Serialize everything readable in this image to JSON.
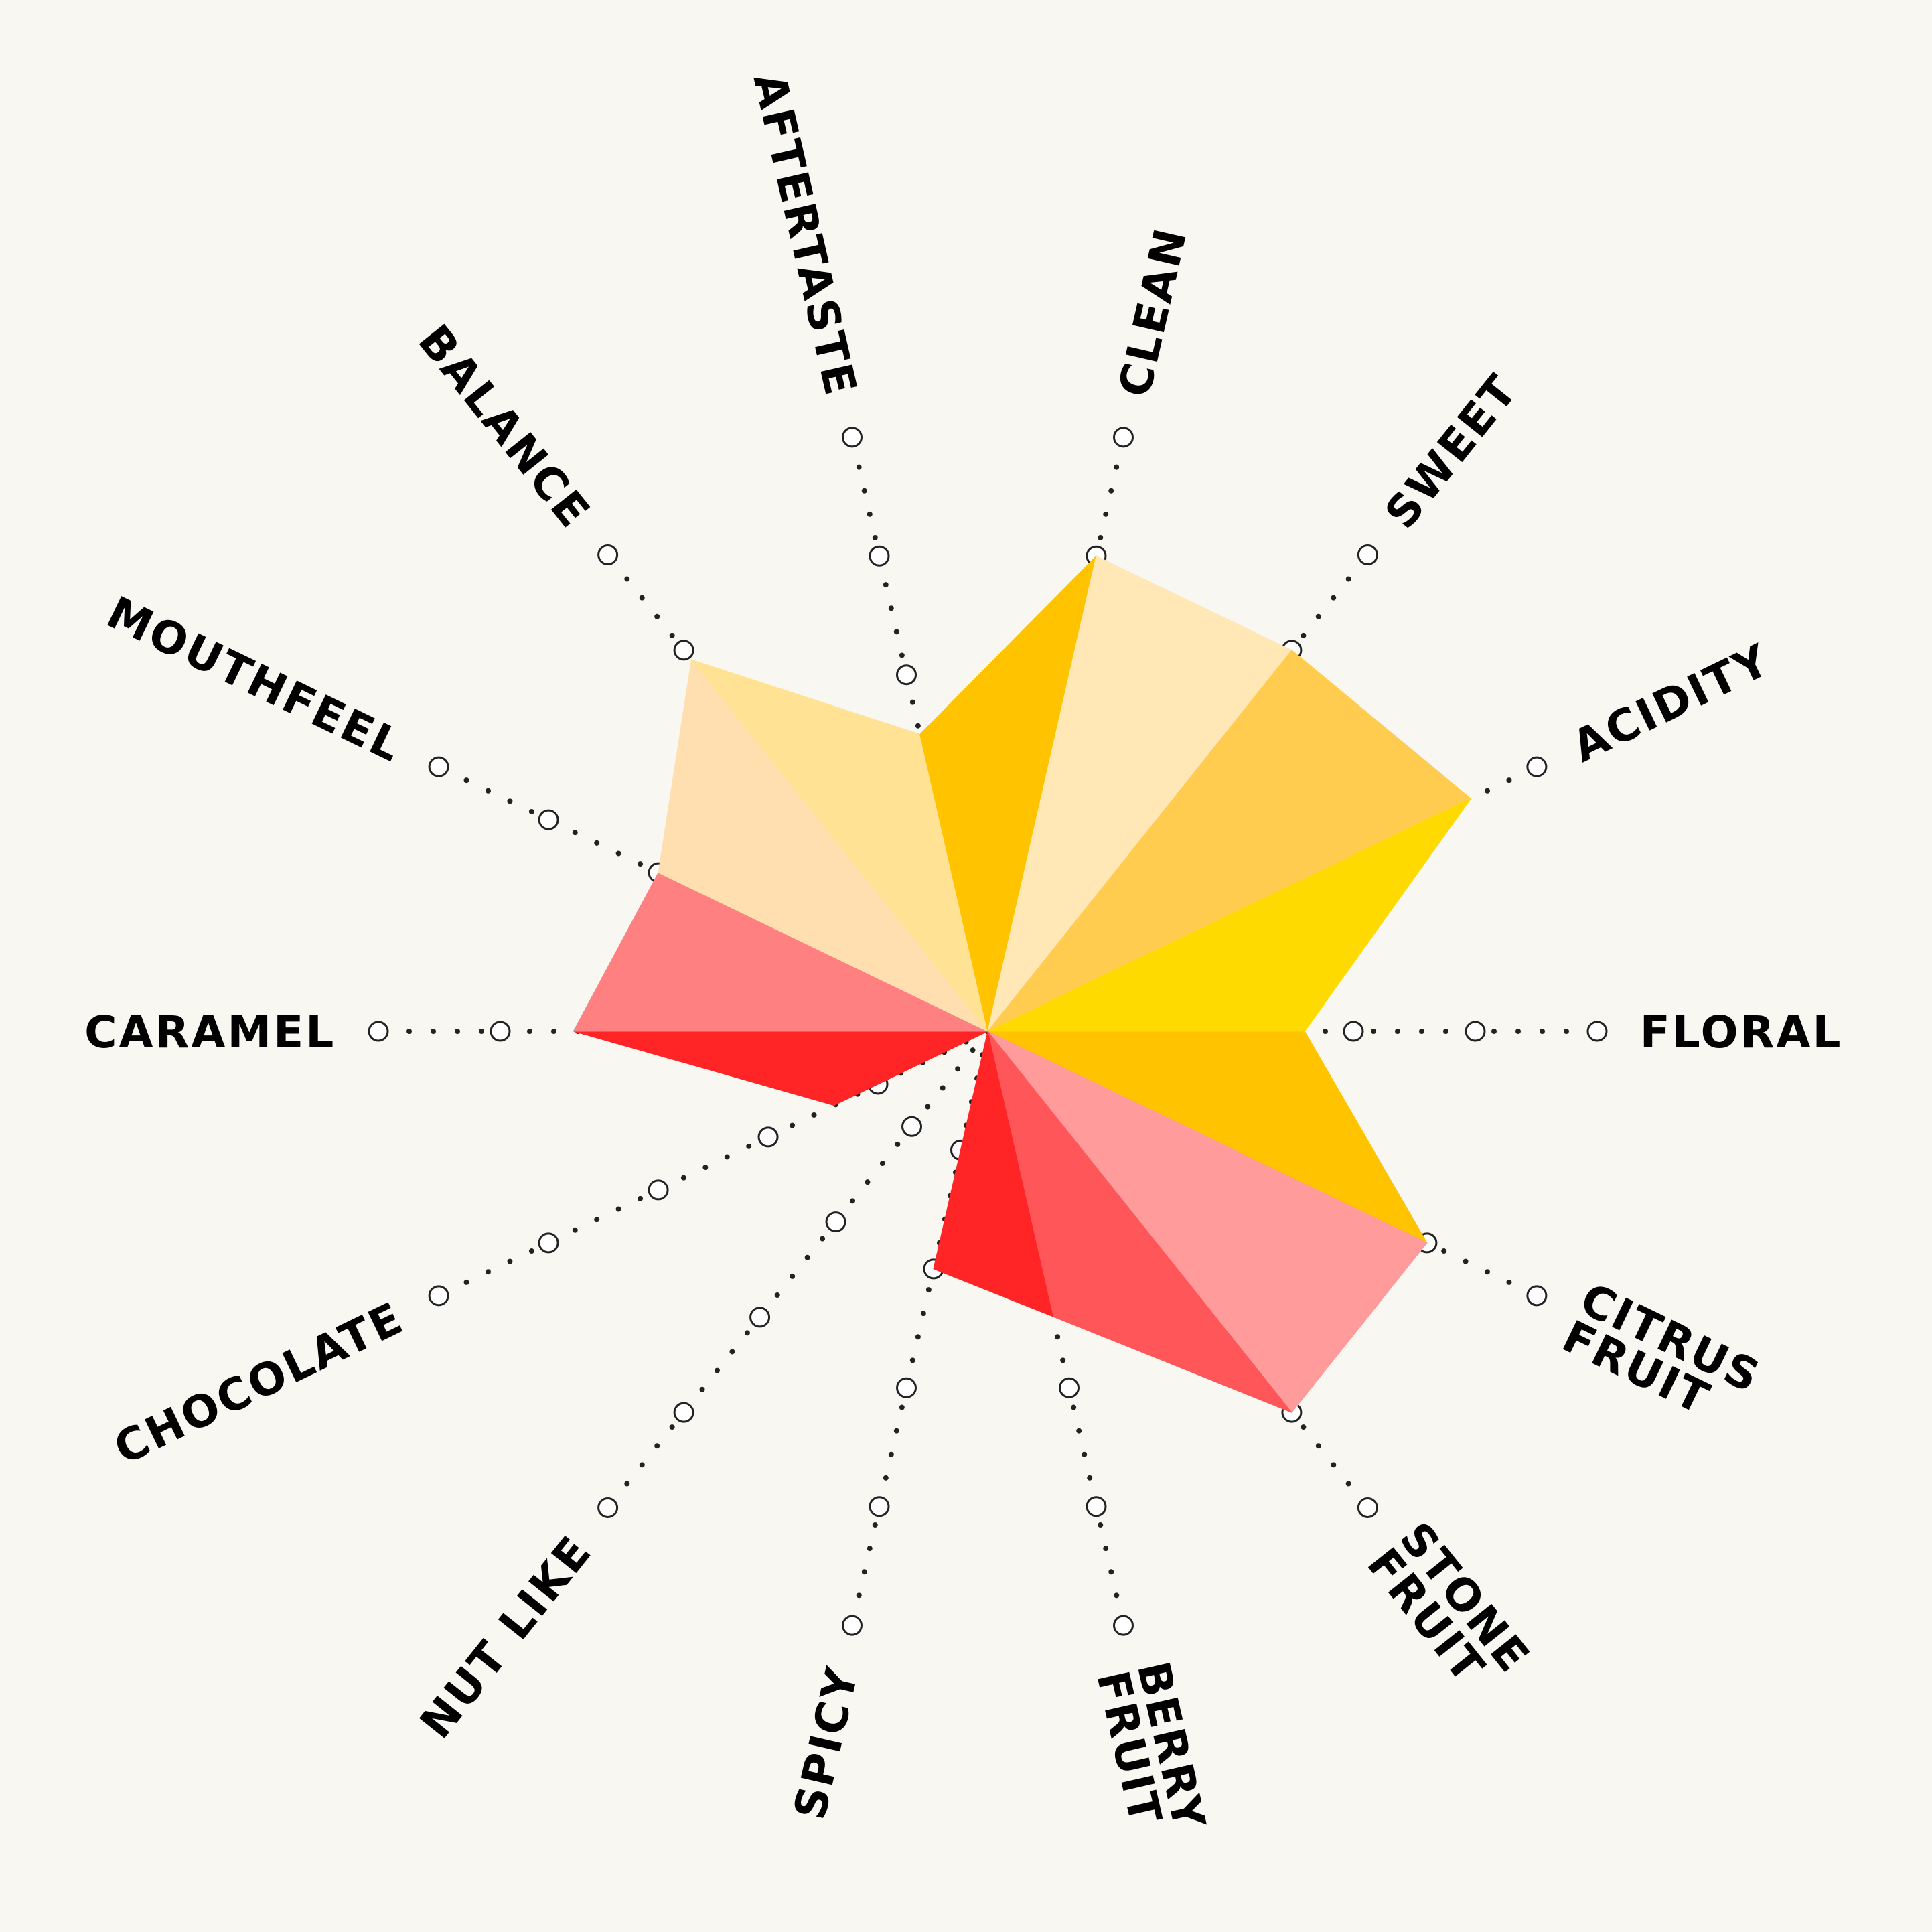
{
  "chart_data": {
    "type": "radar",
    "title": "",
    "scale_levels": [
      1,
      2,
      3,
      4,
      5
    ],
    "rmax": 5,
    "background_color": "#F8F7F2",
    "axes": [
      {
        "label": [
          "FLORAL"
        ],
        "value": 2.6,
        "fill_to_next": "#FFC300"
      },
      {
        "label": [
          "CITRUS",
          "FRUIT"
        ],
        "value": 4.0,
        "fill_to_next": "#FF9B9B"
      },
      {
        "label": [
          "STONE",
          "FRUIT"
        ],
        "value": 4.0,
        "fill_to_next": "#FF5759"
      },
      {
        "label": [
          "BERRY",
          "FRUIT"
        ],
        "value": 2.4,
        "fill_to_next": "#FF2526"
      },
      {
        "label": [
          "SPICY"
        ],
        "value": 2.0,
        "fill_to_next": "#FF2526"
      },
      {
        "label": [
          "NUT LIKE"
        ],
        "value": 0,
        "fill_to_next": "#FF2526"
      },
      {
        "label": [
          "CHOCOLATE"
        ],
        "value": 1.4,
        "fill_to_next": "#FF2526"
      },
      {
        "label": [
          "CARAMEL"
        ],
        "value": 3.4,
        "fill_to_next": "#FF8080"
      },
      {
        "label": [
          "MOUTHFEEL"
        ],
        "value": 3.0,
        "fill_to_next": "#FFDFB0"
      },
      {
        "label": [
          "BALANCE"
        ],
        "value": 3.9,
        "fill_to_next": "#FFE294"
      },
      {
        "label": [
          "AFTERTASTE"
        ],
        "value": 2.5,
        "fill_to_next": "#FFC300"
      },
      {
        "label": [
          "CLEAN"
        ],
        "value": 4.0,
        "fill_to_next": "#FFE8B5"
      },
      {
        "label": [
          "SWEET"
        ],
        "value": 4.0,
        "fill_to_next": "#FFCC50"
      },
      {
        "label": [
          "ACIDITY"
        ],
        "value": 4.4,
        "fill_to_next": "#FFDA00"
      }
    ]
  }
}
